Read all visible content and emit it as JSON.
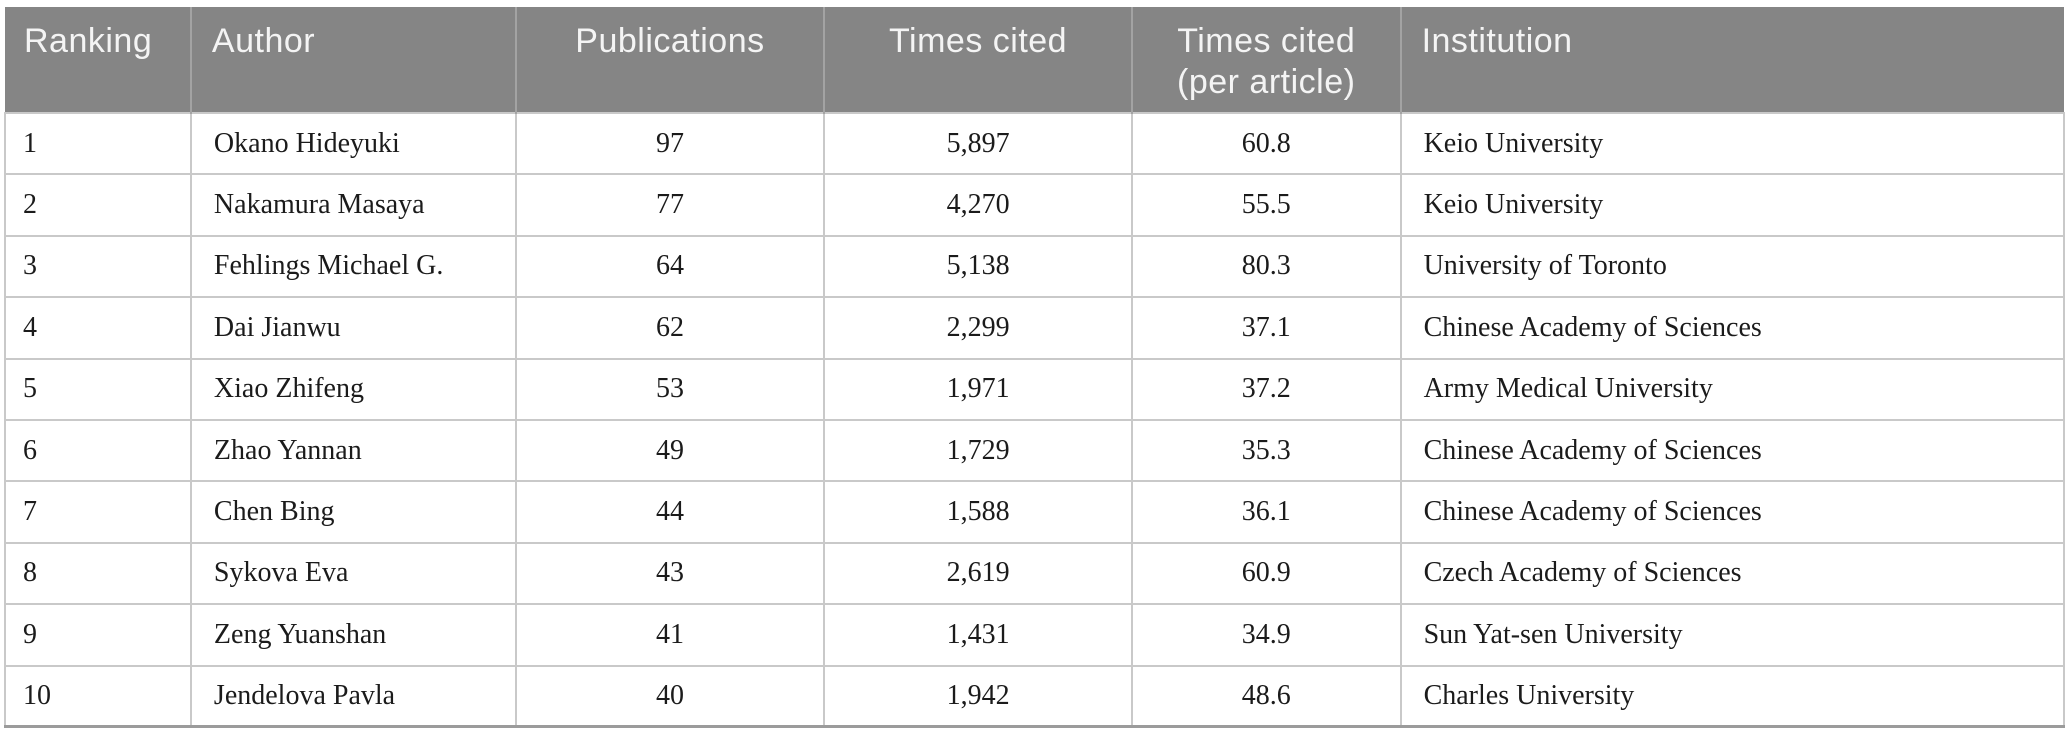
{
  "colors": {
    "header_bg": "#858585",
    "header_text": "#f4f4f4",
    "header_grid": "#a3a3a3",
    "grid": "#c9c9c9",
    "bottom_rule": "#9b9b9b",
    "body_text": "#1b1b1b"
  },
  "table": {
    "columns": [
      {
        "key": "ranking",
        "label": "Ranking",
        "align": "left"
      },
      {
        "key": "author",
        "label": "Author",
        "align": "left"
      },
      {
        "key": "publications",
        "label": "Publications",
        "align": "center"
      },
      {
        "key": "times-cited",
        "label": "Times cited",
        "align": "center"
      },
      {
        "key": "times-cited-per-article",
        "label": "Times cited\n(per article)",
        "align": "center"
      },
      {
        "key": "institution",
        "label": "Institution",
        "align": "left"
      }
    ],
    "rows": [
      [
        "1",
        "Okano Hideyuki",
        "97",
        "5,897",
        "60.8",
        "Keio University"
      ],
      [
        "2",
        "Nakamura Masaya",
        "77",
        "4,270",
        "55.5",
        "Keio University"
      ],
      [
        "3",
        "Fehlings Michael G.",
        "64",
        "5,138",
        "80.3",
        "University of Toronto"
      ],
      [
        "4",
        "Dai Jianwu",
        "62",
        "2,299",
        "37.1",
        "Chinese Academy of Sciences"
      ],
      [
        "5",
        "Xiao Zhifeng",
        "53",
        "1,971",
        "37.2",
        "Army Medical University"
      ],
      [
        "6",
        "Zhao Yannan",
        "49",
        "1,729",
        "35.3",
        "Chinese Academy of Sciences"
      ],
      [
        "7",
        "Chen Bing",
        "44",
        "1,588",
        "36.1",
        "Chinese Academy of Sciences"
      ],
      [
        "8",
        "Sykova Eva",
        "43",
        "2,619",
        "60.9",
        "Czech Academy of Sciences"
      ],
      [
        "9",
        "Zeng Yuanshan",
        "41",
        "1,431",
        "34.9",
        "Sun Yat-sen University"
      ],
      [
        "10",
        "Jendelova Pavla",
        "40",
        "1,942",
        "48.6",
        "Charles University"
      ]
    ]
  }
}
